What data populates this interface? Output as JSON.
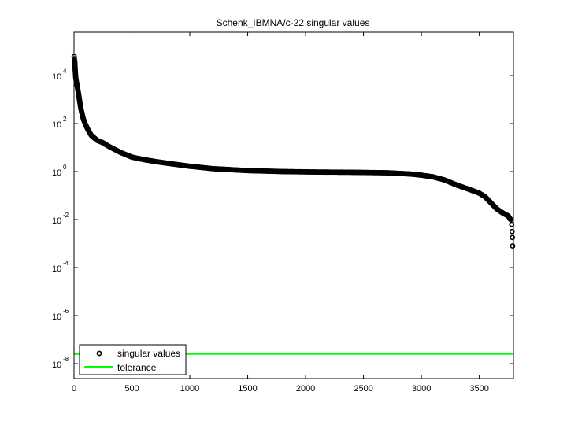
{
  "chart_data": {
    "type": "scatter",
    "title": "Schenk_IBMNA/c-22 singular values",
    "xlabel": "",
    "ylabel": "",
    "yscale": "log",
    "xlim": [
      0,
      3795
    ],
    "ylim_log10": [
      -8.5,
      5.75
    ],
    "x_ticks": [
      0,
      500,
      1000,
      1500,
      2000,
      2500,
      3000,
      3500
    ],
    "x_tick_labels": [
      "0",
      "500",
      "1000",
      "1500",
      "2000",
      "2500",
      "3000",
      "3500"
    ],
    "y_ticks_log10": [
      4,
      2,
      0,
      -2,
      -4,
      -6,
      -8
    ],
    "y_tick_labels": [
      {
        "base": "10",
        "exp": "4"
      },
      {
        "base": "10",
        "exp": "2"
      },
      {
        "base": "10",
        "exp": "0"
      },
      {
        "base": "10",
        "exp": "-2"
      },
      {
        "base": "10",
        "exp": "-4"
      },
      {
        "base": "10",
        "exp": "-6"
      },
      {
        "base": "10",
        "exp": "-8"
      }
    ],
    "grid": false,
    "legend_position": "lower left",
    "series": [
      {
        "name": "singular values",
        "marker": "circle",
        "color": "#000000",
        "points_log10": [
          [
            1,
            4.8
          ],
          [
            3,
            4.7
          ],
          [
            6,
            4.6
          ],
          [
            10,
            4.25
          ],
          [
            15,
            3.9
          ],
          [
            20,
            3.75
          ],
          [
            30,
            3.5
          ],
          [
            40,
            3.2
          ],
          [
            50,
            2.9
          ],
          [
            60,
            2.6
          ],
          [
            70,
            2.4
          ],
          [
            80,
            2.2
          ],
          [
            100,
            1.95
          ],
          [
            120,
            1.75
          ],
          [
            150,
            1.5
          ],
          [
            200,
            1.3
          ],
          [
            250,
            1.2
          ],
          [
            300,
            1.05
          ],
          [
            400,
            0.8
          ],
          [
            500,
            0.6
          ],
          [
            600,
            0.5
          ],
          [
            700,
            0.42
          ],
          [
            800,
            0.35
          ],
          [
            1000,
            0.22
          ],
          [
            1200,
            0.12
          ],
          [
            1500,
            0.04
          ],
          [
            1800,
            0.0
          ],
          [
            2100,
            -0.02
          ],
          [
            2400,
            -0.03
          ],
          [
            2700,
            -0.05
          ],
          [
            2900,
            -0.1
          ],
          [
            3000,
            -0.15
          ],
          [
            3100,
            -0.22
          ],
          [
            3200,
            -0.35
          ],
          [
            3300,
            -0.55
          ],
          [
            3400,
            -0.72
          ],
          [
            3500,
            -0.9
          ],
          [
            3550,
            -1.05
          ],
          [
            3600,
            -1.3
          ],
          [
            3650,
            -1.55
          ],
          [
            3700,
            -1.72
          ],
          [
            3750,
            -1.85
          ],
          [
            3770,
            -2.0
          ],
          [
            3780,
            -2.2
          ],
          [
            3783,
            -2.5
          ],
          [
            3786,
            -2.75
          ],
          [
            3788,
            -3.1
          ]
        ]
      },
      {
        "name": "tolerance",
        "marker": "line",
        "color": "#00ff00",
        "value_log10": -7.6
      }
    ],
    "legend": [
      {
        "label": "singular values",
        "symbol": "circle"
      },
      {
        "label": "tolerance",
        "symbol": "line"
      }
    ]
  },
  "colors": {
    "axes": "#000000",
    "background": "#ffffff",
    "tolerance": "#00ff00",
    "markers": "#000000"
  }
}
